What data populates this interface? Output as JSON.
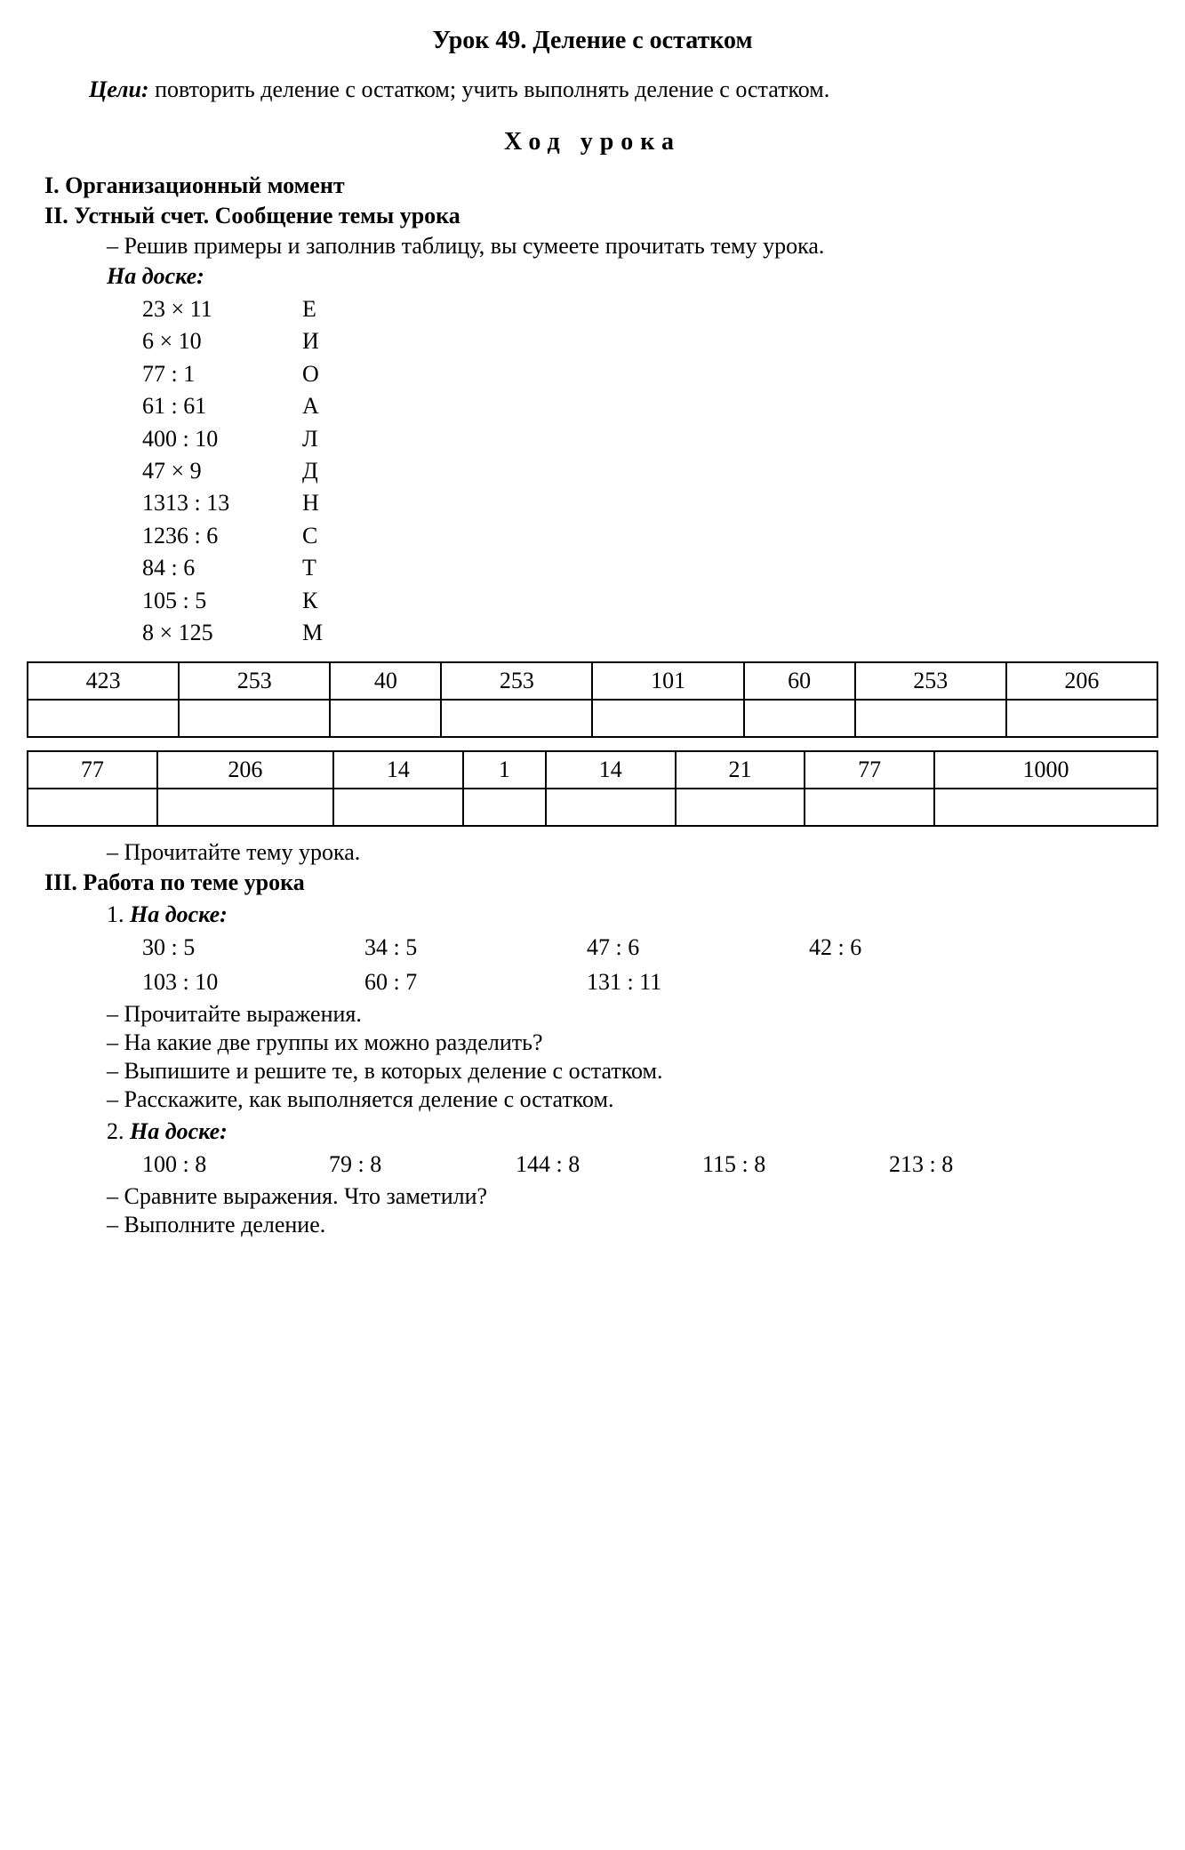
{
  "title": "Урок 49. Деление с остатком",
  "goals_label": "Цели:",
  "goals_text": " повторить деление с остатком; учить выполнять деление с остатком.",
  "progress_title": "Ход урока",
  "h1": "I. Организационный момент",
  "h2": "II. Устный счет. Сообщение темы урока",
  "s2_item1": "Решив примеры и заполнив таблицу, вы сумеете прочитать тему урока.",
  "board_label": "На доске:",
  "expr_list": [
    {
      "a": "23 × 11",
      "b": "Е"
    },
    {
      "a": "6 × 10",
      "b": "И"
    },
    {
      "a": "77 : 1",
      "b": "О"
    },
    {
      "a": "61 : 61",
      "b": "А"
    },
    {
      "a": "400 : 10",
      "b": "Л"
    },
    {
      "a": "47 × 9",
      "b": "Д"
    },
    {
      "a": "1313 : 13",
      "b": "Н"
    },
    {
      "a": "1236 : 6",
      "b": "С"
    },
    {
      "a": "84 : 6",
      "b": "Т"
    },
    {
      "a": "105 : 5",
      "b": "К"
    },
    {
      "a": "8 × 125",
      "b": "М"
    }
  ],
  "table1": [
    "423",
    "253",
    "40",
    "253",
    "101",
    "60",
    "253",
    "206"
  ],
  "table2": [
    "77",
    "206",
    "14",
    "1",
    "14",
    "21",
    "77",
    "1000"
  ],
  "s2_item2": "Прочитайте тему урока.",
  "h3": "III. Работа по теме урока",
  "s3_num1": "1. ",
  "s3_board1": "На доске:",
  "s3_grid1": {
    "rows": [
      [
        "30 : 5",
        "34 : 5",
        "47 : 6",
        "42 : 6"
      ],
      [
        "103 : 10",
        "60 : 7",
        "131 : 11",
        ""
      ]
    ]
  },
  "s3_items1": [
    "Прочитайте выражения.",
    "На какие две группы их можно разделить?",
    "Выпишите и решите те, в которых деление с остатком.",
    "Расскажите, как выполняется деление с остатком."
  ],
  "s3_num2": "2. ",
  "s3_board2": "На доске:",
  "s3_grid2": {
    "rows": [
      [
        "100 : 8",
        "79 : 8",
        "144 : 8",
        "115 : 8",
        "213 : 8"
      ]
    ]
  },
  "s3_items2": [
    "Сравните выражения. Что заметили?",
    "Выполните деление."
  ]
}
